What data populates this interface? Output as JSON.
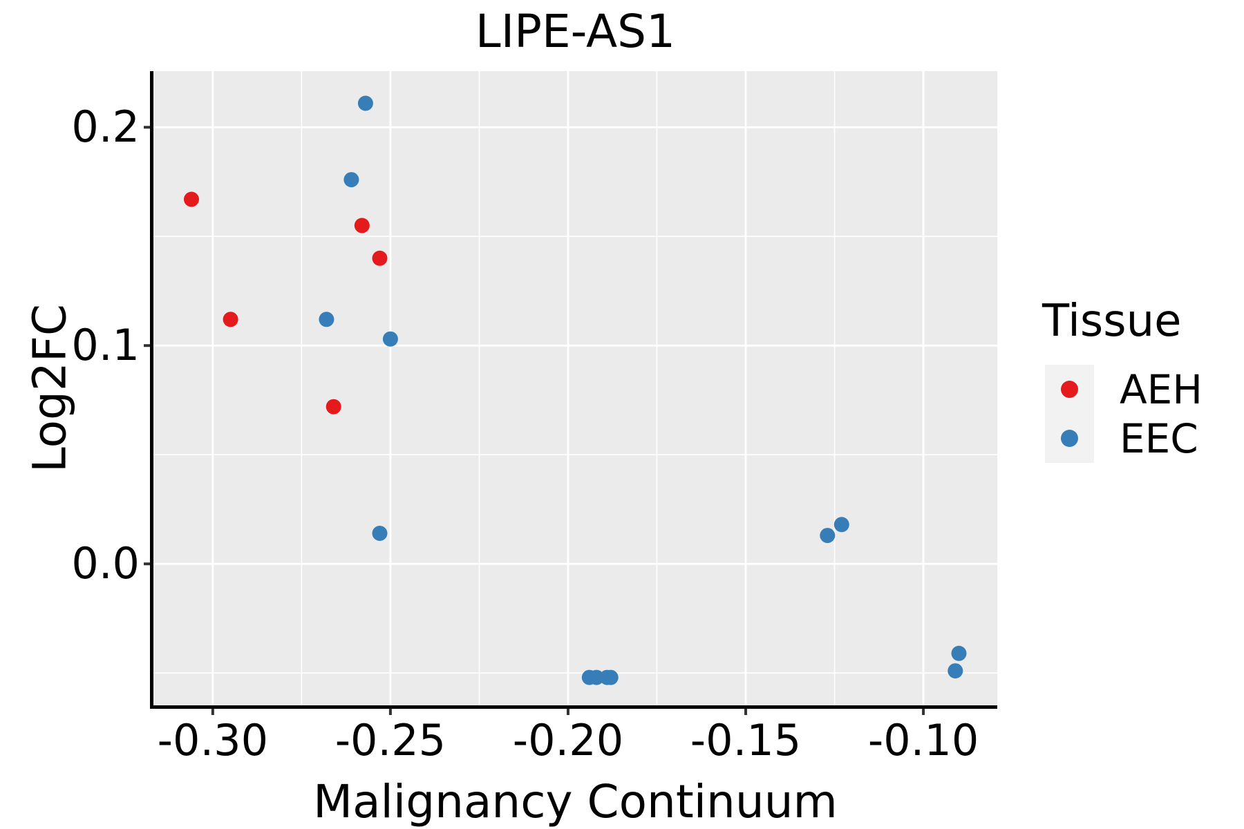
{
  "title": "LIPE-AS1",
  "chart_data": {
    "type": "scatter",
    "title": "LIPE-AS1",
    "xlabel": "Malignancy Continuum",
    "ylabel": "Log2FC",
    "xlim": [
      -0.3167,
      -0.0792
    ],
    "ylim": [
      -0.0648,
      0.2257
    ],
    "x_major_ticks": [
      -0.3,
      -0.25,
      -0.2,
      -0.15,
      -0.1
    ],
    "x_tick_labels": [
      "-0.30",
      "-0.25",
      "-0.20",
      "-0.15",
      "-0.10"
    ],
    "x_minor_ticks": [
      -0.275,
      -0.225,
      -0.175,
      -0.125
    ],
    "y_major_ticks": [
      0.0,
      0.1,
      0.2
    ],
    "y_tick_labels": [
      "0.0",
      "0.1",
      "0.2"
    ],
    "y_minor_ticks": [
      -0.05,
      0.05,
      0.15
    ],
    "grid": true,
    "legend_position": "right",
    "legend_title": "Tissue",
    "series": [
      {
        "name": "AEH",
        "color": "#E41A1C",
        "points": [
          [
            -0.306,
            0.167
          ],
          [
            -0.295,
            0.112
          ],
          [
            -0.258,
            0.155
          ],
          [
            -0.253,
            0.14
          ],
          [
            -0.266,
            0.072
          ]
        ]
      },
      {
        "name": "EEC",
        "color": "#377EB8",
        "points": [
          [
            -0.257,
            0.211
          ],
          [
            -0.261,
            0.176
          ],
          [
            -0.268,
            0.112
          ],
          [
            -0.25,
            0.103
          ],
          [
            -0.253,
            0.014
          ],
          [
            -0.194,
            -0.052
          ],
          [
            -0.192,
            -0.052
          ],
          [
            -0.189,
            -0.052
          ],
          [
            -0.188,
            -0.052
          ],
          [
            -0.127,
            0.013
          ],
          [
            -0.123,
            0.018
          ],
          [
            -0.09,
            -0.041
          ],
          [
            -0.091,
            -0.049
          ]
        ]
      }
    ],
    "point_radius_px": 11,
    "colors": {
      "panel_bg": "#EBEBEB",
      "grid": "#FFFFFF",
      "axis_line": "#000000",
      "tick_mark": "#333333",
      "text": "#000000",
      "legend_key_bg": "#F2F2F2"
    }
  },
  "legend": {
    "title": "Tissue",
    "items": [
      {
        "label": "AEH",
        "color": "#E41A1C"
      },
      {
        "label": "EEC",
        "color": "#377EB8"
      }
    ]
  }
}
